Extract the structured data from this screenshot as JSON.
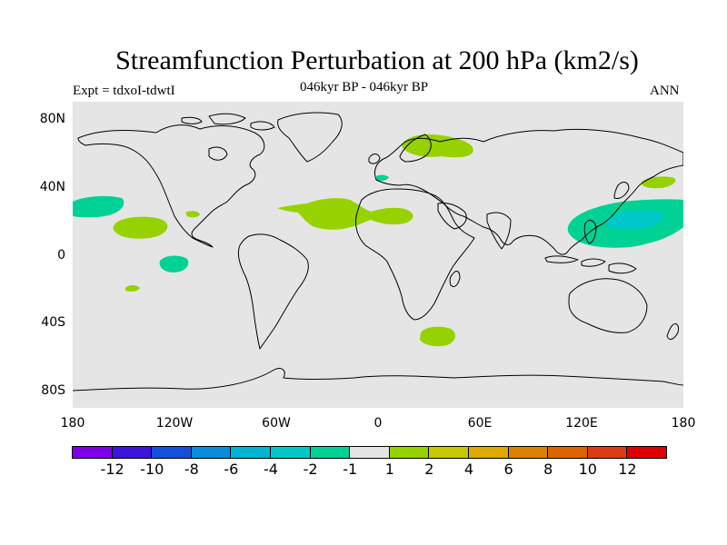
{
  "title": "Streamfunction Perturbation at 200 hPa (km2/s)",
  "subtitle": "046kyr BP - 046kyr BP",
  "experiment": "Expt = tdxoI-tdwtI",
  "season": "ANN",
  "map": {
    "projection": "cylindrical-equidistant",
    "background_color": "#e5e5e5",
    "lat_ticks": [
      "80N",
      "40N",
      "0",
      "40S",
      "80S"
    ],
    "lon_ticks": [
      "180",
      "120W",
      "60W",
      "0",
      "60E",
      "120E",
      "180"
    ]
  },
  "colorbar": {
    "colors": [
      "#7f00e6",
      "#3c14dc",
      "#1450dc",
      "#0a8cdc",
      "#00b4d2",
      "#00c8c8",
      "#00d296",
      "#e5e5e5",
      "#96d200",
      "#c8c800",
      "#dcaa00",
      "#dc8200",
      "#dc6400",
      "#dc3c14",
      "#dc0000"
    ],
    "labels": [
      "-12",
      "-10",
      "-8",
      "-6",
      "-4",
      "-2",
      "-1",
      "1",
      "2",
      "4",
      "6",
      "8",
      "10",
      "12"
    ]
  },
  "anomaly_regions": [
    {
      "name": "north-atlantic-europe-positive",
      "lon": 20,
      "lat": 63,
      "level": "1 to 2",
      "color": "#96d200"
    },
    {
      "name": "tropical-atlantic-positive",
      "lon": -10,
      "lat": 22,
      "level": "1 to 2",
      "color": "#96d200"
    },
    {
      "name": "east-pacific-positive",
      "lon": -135,
      "lat": 16,
      "level": "1 to 2",
      "color": "#96d200"
    },
    {
      "name": "north-pacific-east-positive",
      "lon": 160,
      "lat": 43,
      "level": "1 to 2",
      "color": "#96d200"
    },
    {
      "name": "south-indian-positive",
      "lon": 35,
      "lat": -47,
      "level": "1 to 2",
      "color": "#96d200"
    },
    {
      "name": "south-pacific-positive",
      "lon": -142,
      "lat": -20,
      "level": "1 to 2",
      "color": "#96d200"
    },
    {
      "name": "west-pacific-negative",
      "lon": 150,
      "lat": 20,
      "level": "-2 to -1",
      "color": "#00d296"
    },
    {
      "name": "west-pacific-core-negative",
      "lon": 158,
      "lat": 20,
      "level": "-4 to -2",
      "color": "#00c8c8"
    },
    {
      "name": "central-pacific-negative",
      "lon": -168,
      "lat": 27,
      "level": "-2 to -1",
      "color": "#00d296"
    },
    {
      "name": "tropical-pacific-negative",
      "lon": -120,
      "lat": -5,
      "level": "-2 to -1",
      "color": "#00d296"
    }
  ]
}
